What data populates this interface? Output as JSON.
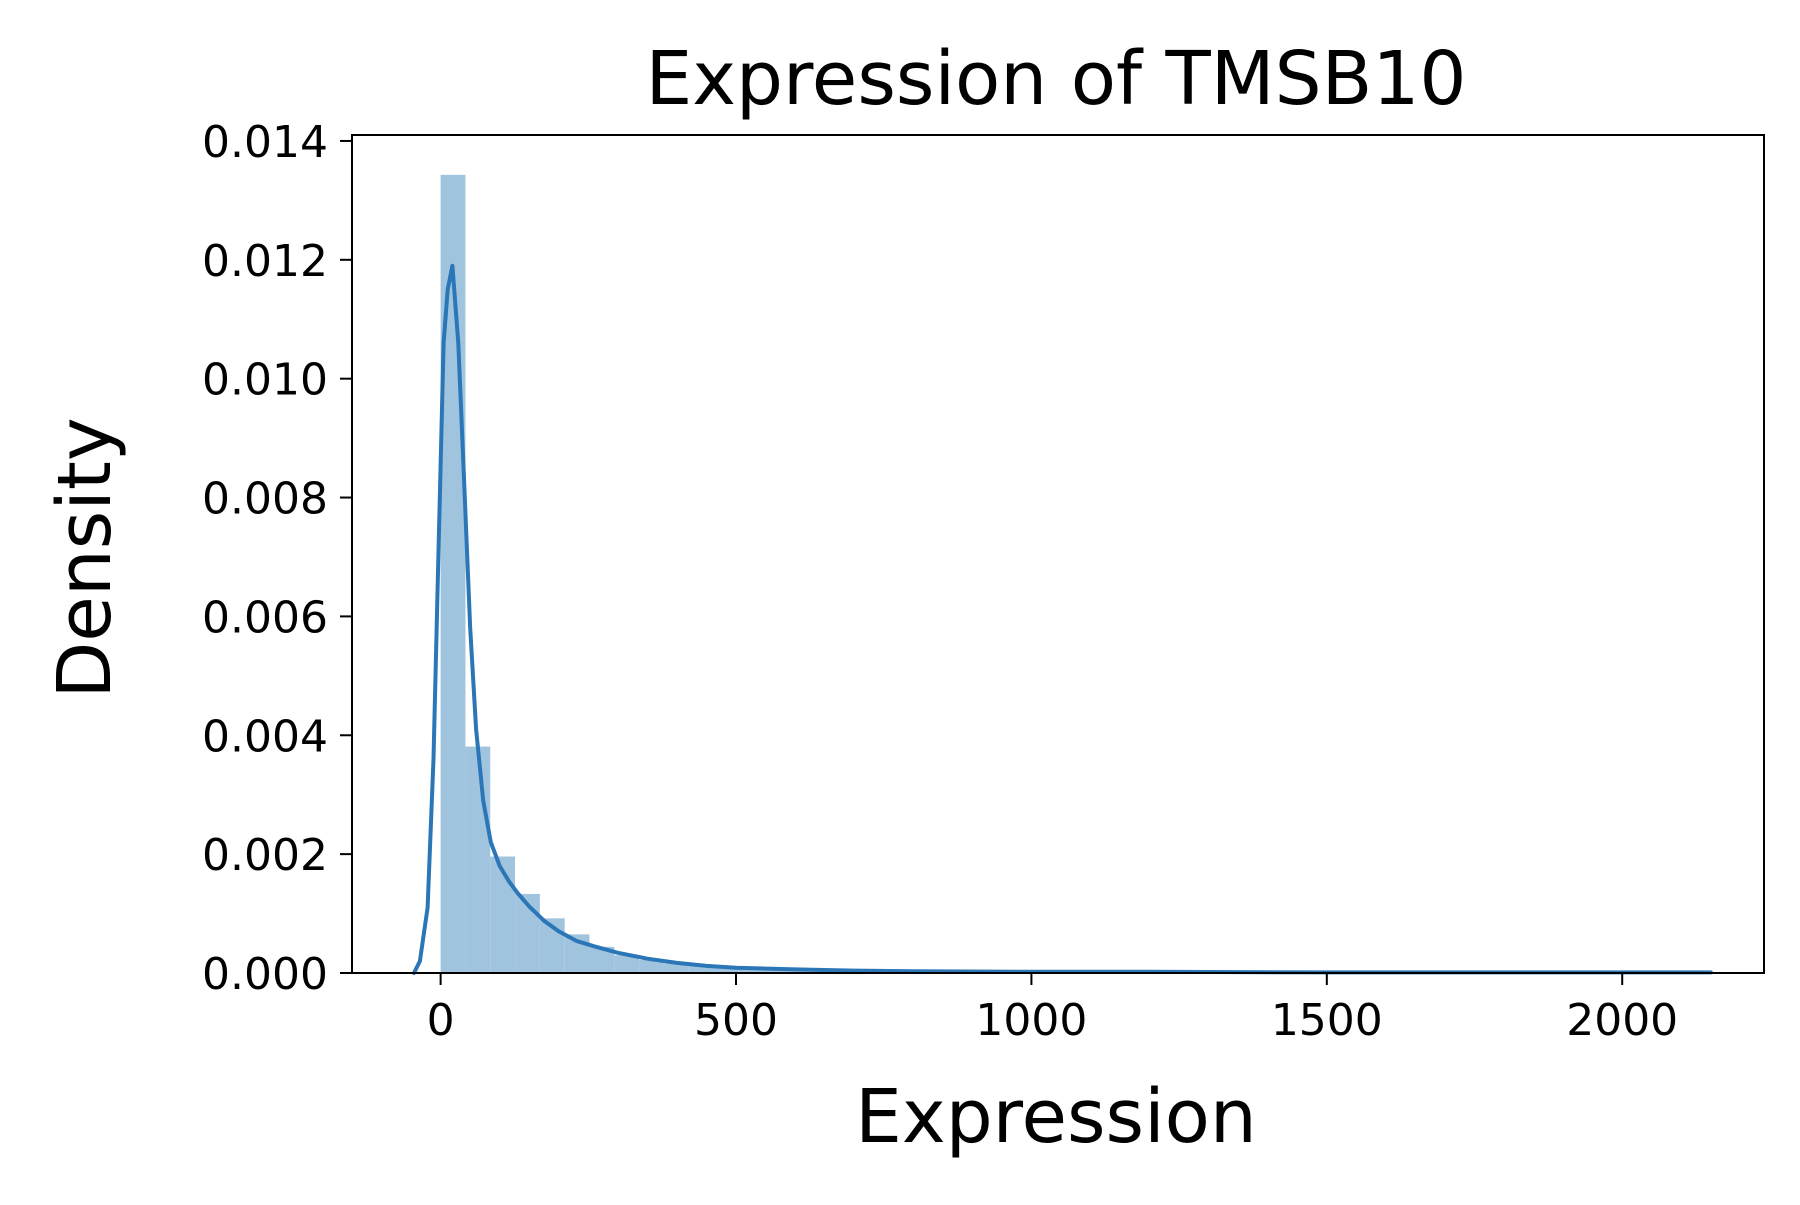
{
  "chart_data": {
    "type": "bar",
    "title": "Expression of TMSB10",
    "xlabel": "Expression",
    "ylabel": "Density",
    "xlim": [
      -150,
      2240
    ],
    "ylim": [
      0,
      0.0141
    ],
    "xticks": [
      0,
      500,
      1000,
      1500,
      2000
    ],
    "yticks": [
      0.0,
      0.002,
      0.004,
      0.006,
      0.008,
      0.01,
      0.012,
      0.014
    ],
    "xtick_labels": [
      "0",
      "500",
      "1000",
      "1500",
      "2000"
    ],
    "ytick_labels": [
      "0.000",
      "0.002",
      "0.004",
      "0.006",
      "0.008",
      "0.010",
      "0.012",
      "0.014"
    ],
    "grid": false,
    "legend": "none",
    "histogram": {
      "bin_edges": [
        0,
        42,
        84,
        126,
        168,
        210,
        252,
        294,
        336,
        378,
        420,
        462,
        504,
        546,
        588,
        630,
        672,
        714,
        756,
        798,
        840
      ],
      "density": [
        0.01343,
        0.00381,
        0.00196,
        0.00133,
        0.00092,
        0.00065,
        0.00044,
        0.0003,
        0.00022,
        0.00016,
        0.00012,
        9e-05,
        7e-05,
        5e-05,
        4e-05,
        3e-05,
        2e-05,
        2e-05,
        1e-05,
        1e-05
      ],
      "color": "#a1c4de"
    },
    "kde": {
      "x": [
        -45,
        -35,
        -22,
        -12,
        -3,
        5,
        12,
        20,
        30,
        40,
        50,
        60,
        72,
        85,
        100,
        115,
        130,
        150,
        175,
        200,
        230,
        260,
        300,
        350,
        400,
        450,
        500,
        600,
        700,
        800,
        1000,
        1200,
        1500,
        1800,
        2000,
        2150
      ],
      "y": [
        0.0,
        0.0002,
        0.0011,
        0.0036,
        0.0073,
        0.0106,
        0.0115,
        0.0119,
        0.0106,
        0.0082,
        0.0058,
        0.0041,
        0.0029,
        0.0022,
        0.0018,
        0.00155,
        0.00135,
        0.00112,
        0.00088,
        0.0007,
        0.00054,
        0.00045,
        0.00034,
        0.00024,
        0.00017,
        0.00012,
        9e-05,
        6e-05,
        4e-05,
        3e-05,
        2e-05,
        2e-05,
        1e-05,
        1e-05,
        1e-05,
        1e-05
      ],
      "color": "#2a76b7"
    }
  }
}
